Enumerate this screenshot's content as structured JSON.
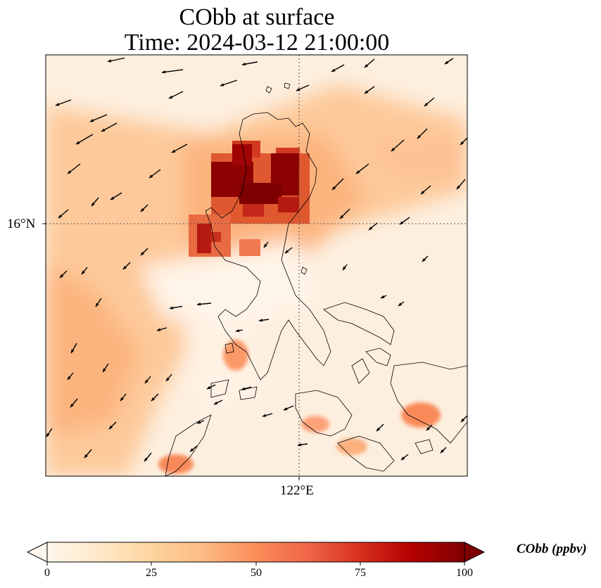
{
  "title": {
    "line1": "CObb at surface",
    "line2": "Time: 2024-03-12 21:00:00"
  },
  "axes": {
    "lat_label": "16°N",
    "lon_label": "122°E",
    "gridlines": "dotted at 16°N and 122°E"
  },
  "colorbar": {
    "label": "CObb (ppbv)",
    "ticks": [
      "0",
      "25",
      "50",
      "75",
      "100"
    ],
    "range": [
      0,
      100
    ],
    "extend": "both",
    "colormap": [
      "#fff7ec",
      "#fee8c8",
      "#fdd49e",
      "#fdbb84",
      "#fc8d59",
      "#ef6548",
      "#d7301f",
      "#b30000",
      "#7f0000"
    ]
  },
  "map": {
    "region": "Northern Philippines (Luzon)",
    "field": "CObb surface concentration",
    "overlay": "wind vectors (arrows, predominantly northeasterly)"
  }
}
